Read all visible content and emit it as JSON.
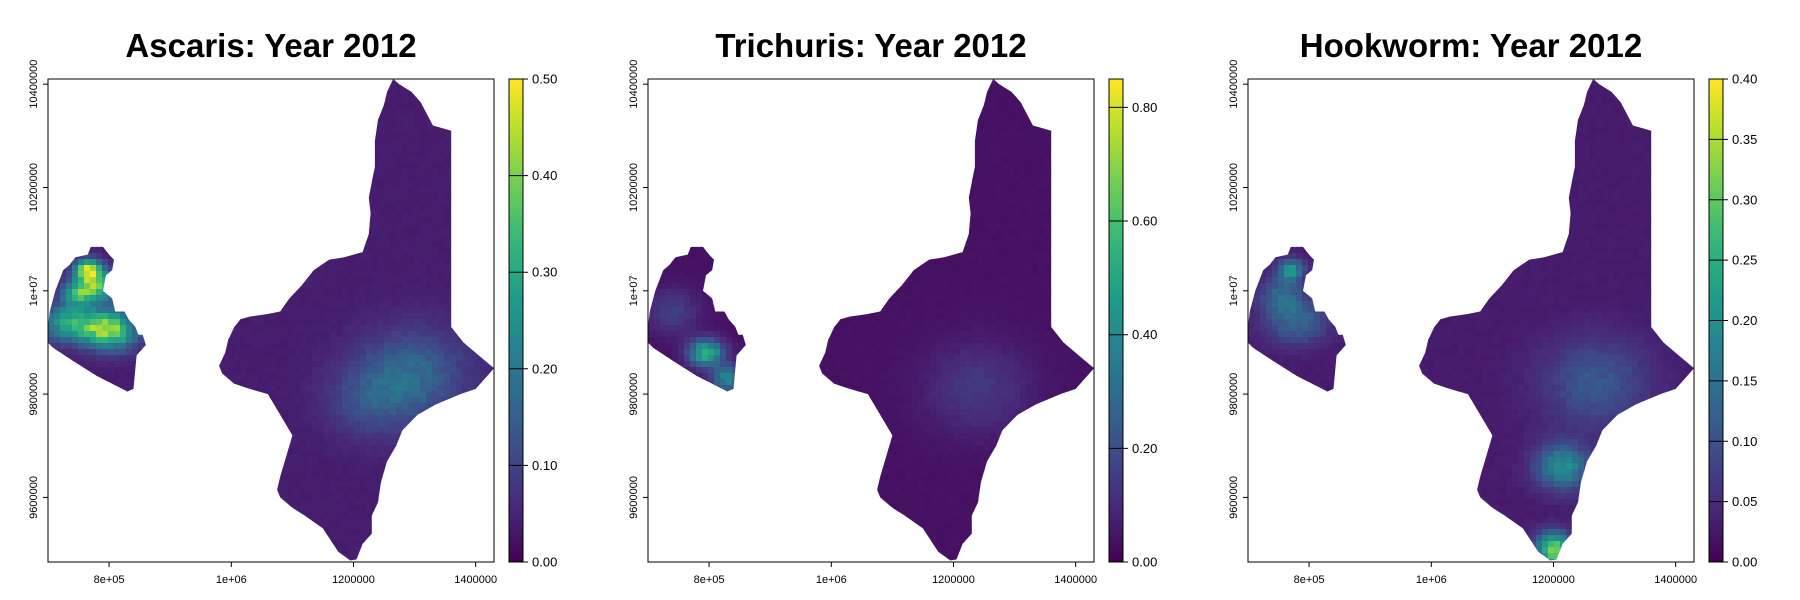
{
  "chart_data": [
    {
      "type": "heatmap",
      "title": "Ascaris: Year 2012",
      "x_ticks": [
        "8e+05",
        "1e+06",
        "1200000",
        "1400000"
      ],
      "x_tick_values": [
        800000,
        1000000,
        1200000,
        1400000
      ],
      "y_ticks": [
        "9600000",
        "9800000",
        "1e+07",
        "10200000",
        "10400000"
      ],
      "y_tick_values": [
        9600000,
        9800000,
        10000000,
        10200000,
        10400000
      ],
      "xlim": [
        700000,
        1430000
      ],
      "ylim": [
        9475000,
        10410000
      ],
      "colorbar": {
        "palette": "viridis",
        "range": [
          0,
          0.5
        ],
        "ticks": [
          "0.00",
          "0.10",
          "0.20",
          "0.30",
          "0.40",
          "0.50"
        ],
        "tick_values": [
          0,
          0.1,
          0.2,
          0.3,
          0.4,
          0.5
        ]
      },
      "background_value": 0.04,
      "hotspots": [
        {
          "x": 765000,
          "y": 10040000,
          "sx": 15000,
          "sy": 15000,
          "v": 0.38
        },
        {
          "x": 785000,
          "y": 10010000,
          "sx": 22000,
          "sy": 20000,
          "v": 0.3
        },
        {
          "x": 750000,
          "y": 9995000,
          "sx": 18000,
          "sy": 18000,
          "v": 0.25
        },
        {
          "x": 780000,
          "y": 9930000,
          "sx": 30000,
          "sy": 25000,
          "v": 0.3
        },
        {
          "x": 725000,
          "y": 9940000,
          "sx": 25000,
          "sy": 25000,
          "v": 0.2
        },
        {
          "x": 815000,
          "y": 9920000,
          "sx": 25000,
          "sy": 25000,
          "v": 0.2
        },
        {
          "x": 1300000,
          "y": 9840000,
          "sx": 60000,
          "sy": 60000,
          "v": 0.12
        },
        {
          "x": 1230000,
          "y": 9790000,
          "sx": 50000,
          "sy": 50000,
          "v": 0.08
        }
      ]
    },
    {
      "type": "heatmap",
      "title": "Trichuris: Year 2012",
      "x_ticks": [
        "8e+05",
        "1e+06",
        "1200000",
        "1400000"
      ],
      "x_tick_values": [
        800000,
        1000000,
        1200000,
        1400000
      ],
      "y_ticks": [
        "9600000",
        "9800000",
        "1e+07",
        "10200000",
        "10400000"
      ],
      "y_tick_values": [
        9600000,
        9800000,
        10000000,
        10200000,
        10400000
      ],
      "xlim": [
        700000,
        1430000
      ],
      "ylim": [
        9475000,
        10410000
      ],
      "colorbar": {
        "palette": "viridis",
        "range": [
          0,
          0.85
        ],
        "ticks": [
          "0.00",
          "0.20",
          "0.40",
          "0.60",
          "0.80"
        ],
        "tick_values": [
          0,
          0.2,
          0.4,
          0.6,
          0.8
        ]
      },
      "background_value": 0.04,
      "hotspots": [
        {
          "x": 795000,
          "y": 9880000,
          "sx": 20000,
          "sy": 18000,
          "v": 0.5
        },
        {
          "x": 830000,
          "y": 9830000,
          "sx": 18000,
          "sy": 18000,
          "v": 0.35
        },
        {
          "x": 740000,
          "y": 9960000,
          "sx": 30000,
          "sy": 30000,
          "v": 0.12
        },
        {
          "x": 1240000,
          "y": 9810000,
          "sx": 60000,
          "sy": 60000,
          "v": 0.1
        }
      ]
    },
    {
      "type": "heatmap",
      "title": "Hookworm: Year 2012",
      "x_ticks": [
        "8e+05",
        "1e+06",
        "1200000",
        "1400000"
      ],
      "x_tick_values": [
        800000,
        1000000,
        1200000,
        1400000
      ],
      "y_ticks": [
        "9600000",
        "9800000",
        "1e+07",
        "10200000",
        "10400000"
      ],
      "y_tick_values": [
        9600000,
        9800000,
        10000000,
        10200000,
        10400000
      ],
      "xlim": [
        700000,
        1430000
      ],
      "ylim": [
        9475000,
        10410000
      ],
      "colorbar": {
        "palette": "viridis",
        "range": [
          0,
          0.4
        ],
        "ticks": [
          "0.00",
          "0.05",
          "0.10",
          "0.15",
          "0.20",
          "0.25",
          "0.30",
          "0.35",
          "0.40"
        ],
        "tick_values": [
          0,
          0.05,
          0.1,
          0.15,
          0.2,
          0.25,
          0.3,
          0.35,
          0.4
        ]
      },
      "background_value": 0.03,
      "hotspots": [
        {
          "x": 1200000,
          "y": 9500000,
          "sx": 20000,
          "sy": 22000,
          "v": 0.3
        },
        {
          "x": 1215000,
          "y": 9660000,
          "sx": 30000,
          "sy": 30000,
          "v": 0.17
        },
        {
          "x": 770000,
          "y": 10040000,
          "sx": 15000,
          "sy": 15000,
          "v": 0.17
        },
        {
          "x": 755000,
          "y": 9990000,
          "sx": 25000,
          "sy": 25000,
          "v": 0.1
        },
        {
          "x": 780000,
          "y": 9940000,
          "sx": 35000,
          "sy": 30000,
          "v": 0.1
        },
        {
          "x": 1270000,
          "y": 9820000,
          "sx": 60000,
          "sy": 60000,
          "v": 0.08
        }
      ]
    }
  ],
  "map_shapes": {
    "west_region": [
      [
        700000,
        9930000
      ],
      [
        703000,
        9960000
      ],
      [
        712000,
        10000000
      ],
      [
        725000,
        10040000
      ],
      [
        735000,
        10050000
      ],
      [
        745000,
        10065000
      ],
      [
        765000,
        10070000
      ],
      [
        770000,
        10085000
      ],
      [
        790000,
        10085000
      ],
      [
        800000,
        10070000
      ],
      [
        808000,
        10060000
      ],
      [
        805000,
        10040000
      ],
      [
        795000,
        10030000
      ],
      [
        790000,
        10000000
      ],
      [
        805000,
        9985000
      ],
      [
        810000,
        9960000
      ],
      [
        825000,
        9960000
      ],
      [
        832000,
        9945000
      ],
      [
        843000,
        9930000
      ],
      [
        848000,
        9915000
      ],
      [
        855000,
        9915000
      ],
      [
        860000,
        9895000
      ],
      [
        845000,
        9875000
      ],
      [
        840000,
        9810000
      ],
      [
        830000,
        9805000
      ],
      [
        780000,
        9835000
      ],
      [
        740000,
        9865000
      ],
      [
        708000,
        9890000
      ],
      [
        700000,
        9900000
      ]
    ],
    "east_region": [
      [
        1265000,
        10410000
      ],
      [
        1275000,
        10400000
      ],
      [
        1295000,
        10385000
      ],
      [
        1310000,
        10365000
      ],
      [
        1330000,
        10320000
      ],
      [
        1360000,
        10310000
      ],
      [
        1360000,
        9930000
      ],
      [
        1380000,
        9900000
      ],
      [
        1410000,
        9870000
      ],
      [
        1430000,
        9850000
      ],
      [
        1400000,
        9810000
      ],
      [
        1375000,
        9800000
      ],
      [
        1335000,
        9780000
      ],
      [
        1305000,
        9760000
      ],
      [
        1280000,
        9730000
      ],
      [
        1270000,
        9700000
      ],
      [
        1255000,
        9670000
      ],
      [
        1245000,
        9630000
      ],
      [
        1240000,
        9590000
      ],
      [
        1230000,
        9565000
      ],
      [
        1230000,
        9530000
      ],
      [
        1215000,
        9510000
      ],
      [
        1205000,
        9480000
      ],
      [
        1195000,
        9478000
      ],
      [
        1175000,
        9495000
      ],
      [
        1150000,
        9540000
      ],
      [
        1120000,
        9565000
      ],
      [
        1100000,
        9580000
      ],
      [
        1080000,
        9600000
      ],
      [
        1075000,
        9615000
      ],
      [
        1080000,
        9640000
      ],
      [
        1090000,
        9680000
      ],
      [
        1100000,
        9720000
      ],
      [
        1085000,
        9750000
      ],
      [
        1060000,
        9800000
      ],
      [
        1030000,
        9810000
      ],
      [
        1005000,
        9820000
      ],
      [
        985000,
        9840000
      ],
      [
        980000,
        9855000
      ],
      [
        990000,
        9880000
      ],
      [
        995000,
        9905000
      ],
      [
        1005000,
        9930000
      ],
      [
        1015000,
        9945000
      ],
      [
        1030000,
        9950000
      ],
      [
        1060000,
        9955000
      ],
      [
        1080000,
        9960000
      ],
      [
        1095000,
        9985000
      ],
      [
        1115000,
        10010000
      ],
      [
        1135000,
        10040000
      ],
      [
        1160000,
        10060000
      ],
      [
        1185000,
        10065000
      ],
      [
        1215000,
        10075000
      ],
      [
        1225000,
        10110000
      ],
      [
        1228000,
        10150000
      ],
      [
        1225000,
        10180000
      ],
      [
        1230000,
        10210000
      ],
      [
        1235000,
        10240000
      ],
      [
        1235000,
        10290000
      ],
      [
        1240000,
        10330000
      ],
      [
        1250000,
        10360000
      ],
      [
        1255000,
        10385000
      ]
    ]
  }
}
